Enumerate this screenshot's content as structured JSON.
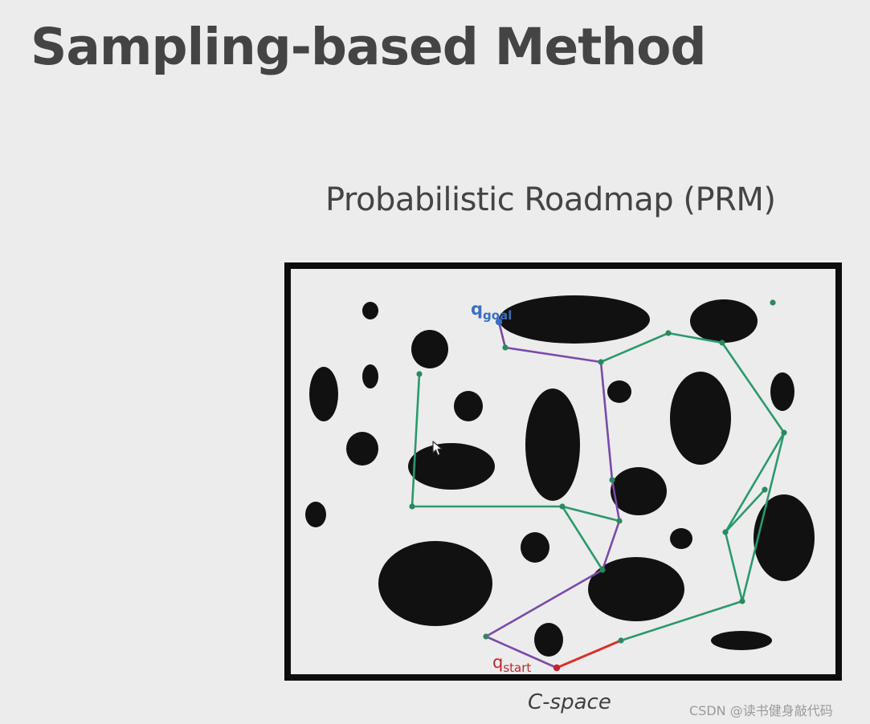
{
  "slide": {
    "title": "Sampling-based Method",
    "subtitle": "Probabilistic Roadmap (PRM)",
    "caption": "C-space"
  },
  "labels": {
    "goal": {
      "main": "q",
      "sub": "goal",
      "color": "#3a6fc0"
    },
    "start": {
      "main": "q",
      "sub": "start",
      "color": "#c0262c"
    }
  },
  "colors": {
    "frame": "#0d0d0d",
    "workspace": "#ececec",
    "obstacle": "#111111",
    "roadmap_edge": "#2a9a6a",
    "roadmap_node": "#2a8a5c",
    "path": "#7a4aa8",
    "start_edge": "#d8302a"
  },
  "watermark": "CSDN @读书健身敲代码"
}
